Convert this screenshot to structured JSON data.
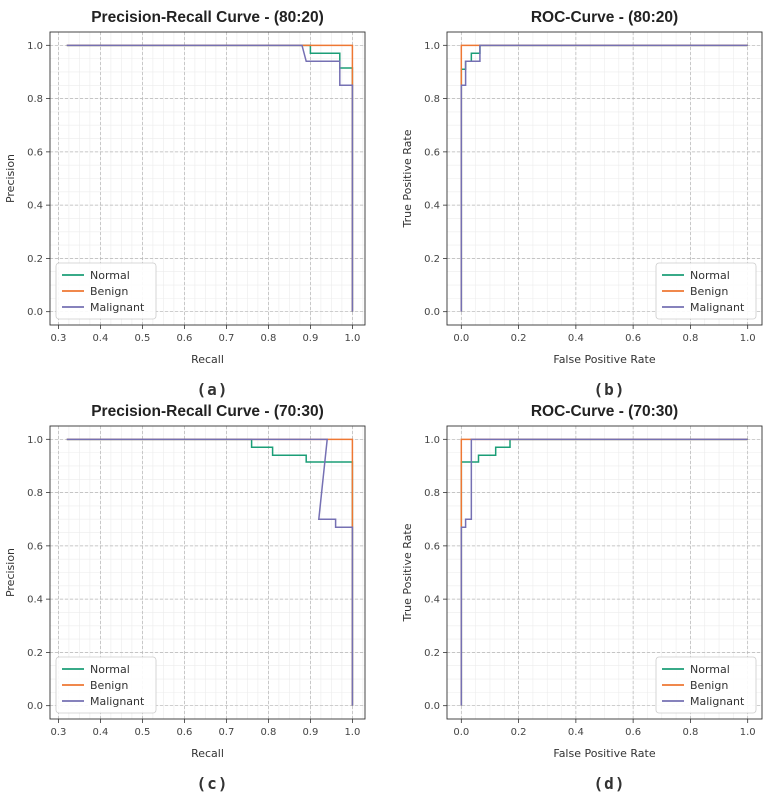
{
  "colors": {
    "Normal": "#1b9e77",
    "Benign": "#ee7733",
    "Malignant": "#7570b3"
  },
  "chart_data": [
    {
      "type": "line",
      "title": "Precision-Recall Curve - (80:20)",
      "xlabel": "Recall",
      "ylabel": "Precision",
      "caption": "(a)",
      "xlim": [
        0.28,
        1.03
      ],
      "ylim": [
        -0.05,
        1.05
      ],
      "xticks": [
        0.3,
        0.4,
        0.5,
        0.6,
        0.7,
        0.8,
        0.9,
        1.0
      ],
      "xtick_labels": [
        "0.3",
        "0.4",
        "0.5",
        "0.6",
        "0.7",
        "0.8",
        "0.9",
        "1.0"
      ],
      "yticks": [
        0.0,
        0.2,
        0.4,
        0.6,
        0.8,
        1.0
      ],
      "ytick_labels": [
        "0.0",
        "0.2",
        "0.4",
        "0.6",
        "0.8",
        "1.0"
      ],
      "legend": "lower-left",
      "series": [
        {
          "name": "Normal",
          "x": [
            0.32,
            0.89,
            0.9,
            0.9,
            0.97,
            0.97,
            1.0,
            1.0,
            1.0
          ],
          "y": [
            1.0,
            1.0,
            1.0,
            0.97,
            0.97,
            0.915,
            0.915,
            0.85,
            0.0
          ]
        },
        {
          "name": "Benign",
          "x": [
            0.32,
            1.0,
            1.0,
            1.0
          ],
          "y": [
            1.0,
            1.0,
            0.85,
            0.0
          ]
        },
        {
          "name": "Malignant",
          "x": [
            0.32,
            0.88,
            0.89,
            0.97,
            0.97,
            1.0,
            1.0
          ],
          "y": [
            1.0,
            1.0,
            0.94,
            0.94,
            0.85,
            0.85,
            0.0
          ]
        }
      ]
    },
    {
      "type": "line",
      "title": "ROC-Curve - (80:20)",
      "xlabel": "False Positive Rate",
      "ylabel": "True Positive Rate",
      "caption": "(b)",
      "xlim": [
        -0.05,
        1.05
      ],
      "ylim": [
        -0.05,
        1.05
      ],
      "xticks": [
        0.0,
        0.2,
        0.4,
        0.6,
        0.8,
        1.0
      ],
      "xtick_labels": [
        "0.0",
        "0.2",
        "0.4",
        "0.6",
        "0.8",
        "1.0"
      ],
      "yticks": [
        0.0,
        0.2,
        0.4,
        0.6,
        0.8,
        1.0
      ],
      "ytick_labels": [
        "0.0",
        "0.2",
        "0.4",
        "0.6",
        "0.8",
        "1.0"
      ],
      "legend": "lower-right",
      "series": [
        {
          "name": "Normal",
          "x": [
            0.0,
            0.0,
            0.015,
            0.015,
            0.035,
            0.035,
            0.065,
            0.065,
            1.0
          ],
          "y": [
            0.0,
            0.91,
            0.91,
            0.94,
            0.94,
            0.97,
            0.97,
            1.0,
            1.0
          ]
        },
        {
          "name": "Benign",
          "x": [
            0.0,
            0.0,
            1.0
          ],
          "y": [
            0.0,
            1.0,
            1.0
          ]
        },
        {
          "name": "Malignant",
          "x": [
            0.0,
            0.0,
            0.015,
            0.015,
            0.035,
            0.035,
            0.065,
            0.065,
            1.0
          ],
          "y": [
            0.0,
            0.85,
            0.85,
            0.94,
            0.94,
            0.94,
            0.94,
            1.0,
            1.0
          ]
        }
      ]
    },
    {
      "type": "line",
      "title": "Precision-Recall Curve - (70:30)",
      "xlabel": "Recall",
      "ylabel": "Precision",
      "caption": "(c)",
      "xlim": [
        0.28,
        1.03
      ],
      "ylim": [
        -0.05,
        1.05
      ],
      "xticks": [
        0.3,
        0.4,
        0.5,
        0.6,
        0.7,
        0.8,
        0.9,
        1.0
      ],
      "xtick_labels": [
        "0.3",
        "0.4",
        "0.5",
        "0.6",
        "0.7",
        "0.8",
        "0.9",
        "1.0"
      ],
      "yticks": [
        0.0,
        0.2,
        0.4,
        0.6,
        0.8,
        1.0
      ],
      "ytick_labels": [
        "0.0",
        "0.2",
        "0.4",
        "0.6",
        "0.8",
        "1.0"
      ],
      "legend": "lower-left",
      "series": [
        {
          "name": "Normal",
          "x": [
            0.32,
            0.76,
            0.76,
            0.81,
            0.81,
            0.89,
            0.89,
            1.0,
            1.0
          ],
          "y": [
            1.0,
            1.0,
            0.97,
            0.97,
            0.94,
            0.94,
            0.915,
            0.915,
            0.0
          ]
        },
        {
          "name": "Benign",
          "x": [
            0.32,
            1.0,
            1.0
          ],
          "y": [
            1.0,
            1.0,
            0.0
          ]
        },
        {
          "name": "Malignant",
          "x": [
            0.32,
            0.94,
            0.92,
            0.96,
            0.96,
            1.0,
            1.0
          ],
          "y": [
            1.0,
            1.0,
            0.7,
            0.7,
            0.67,
            0.67,
            0.0
          ]
        }
      ]
    },
    {
      "type": "line",
      "title": "ROC-Curve - (70:30)",
      "xlabel": "False Positive Rate",
      "ylabel": "True Positive Rate",
      "caption": "(d)",
      "xlim": [
        -0.05,
        1.05
      ],
      "ylim": [
        -0.05,
        1.05
      ],
      "xticks": [
        0.0,
        0.2,
        0.4,
        0.6,
        0.8,
        1.0
      ],
      "xtick_labels": [
        "0.0",
        "0.2",
        "0.4",
        "0.6",
        "0.8",
        "1.0"
      ],
      "yticks": [
        0.0,
        0.2,
        0.4,
        0.6,
        0.8,
        1.0
      ],
      "ytick_labels": [
        "0.0",
        "0.2",
        "0.4",
        "0.6",
        "0.8",
        "1.0"
      ],
      "legend": "lower-right",
      "series": [
        {
          "name": "Normal",
          "x": [
            0.0,
            0.0,
            0.06,
            0.06,
            0.12,
            0.12,
            0.17,
            0.17,
            1.0
          ],
          "y": [
            0.0,
            0.915,
            0.915,
            0.94,
            0.94,
            0.97,
            0.97,
            1.0,
            1.0
          ]
        },
        {
          "name": "Benign",
          "x": [
            0.0,
            0.0,
            1.0
          ],
          "y": [
            0.0,
            1.0,
            1.0
          ]
        },
        {
          "name": "Malignant",
          "x": [
            0.0,
            0.0,
            0.015,
            0.015,
            0.035,
            0.035,
            1.0
          ],
          "y": [
            0.0,
            0.67,
            0.67,
            0.7,
            0.7,
            1.0,
            1.0
          ]
        }
      ]
    }
  ]
}
